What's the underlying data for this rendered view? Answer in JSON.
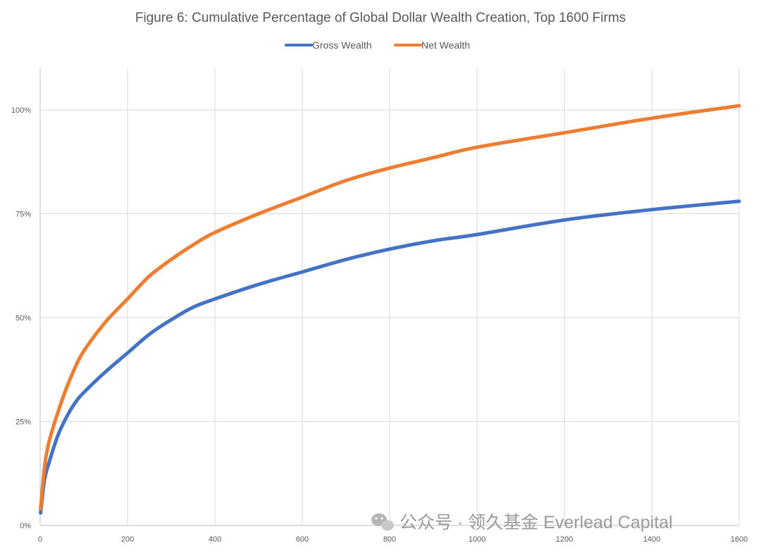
{
  "chart_data": {
    "type": "line",
    "title": "Figure 6: Cumulative Percentage of Global Dollar Wealth Creation, Top 1600 Firms",
    "xlabel": "",
    "ylabel": "",
    "xlim": [
      0,
      1600
    ],
    "ylim": [
      0,
      1.1
    ],
    "x_ticks": [
      0,
      200,
      400,
      600,
      800,
      1000,
      1200,
      1400,
      1600
    ],
    "x_tick_labels": [
      "0",
      "200",
      "400",
      "600",
      "800",
      "1000",
      "1200",
      "1400",
      "1600"
    ],
    "y_ticks": [
      0,
      0.25,
      0.5,
      0.75,
      1.0
    ],
    "y_tick_labels": [
      "0%",
      "25%",
      "50%",
      "75%",
      "100%"
    ],
    "grid": "vertical and horizontal",
    "legend_position": "top",
    "x": [
      1,
      10,
      20,
      40,
      60,
      80,
      100,
      150,
      200,
      250,
      300,
      350,
      400,
      500,
      600,
      700,
      800,
      900,
      1000,
      1200,
      1400,
      1600
    ],
    "series": [
      {
        "name": "Gross Wealth",
        "color": "#4472C4",
        "values": [
          0.03,
          0.11,
          0.15,
          0.215,
          0.26,
          0.295,
          0.32,
          0.37,
          0.415,
          0.46,
          0.495,
          0.525,
          0.545,
          0.58,
          0.61,
          0.64,
          0.665,
          0.685,
          0.7,
          0.735,
          0.76,
          0.78
        ]
      },
      {
        "name": "Net Wealth",
        "color": "#ED7D31",
        "values": [
          0.04,
          0.14,
          0.2,
          0.27,
          0.33,
          0.38,
          0.42,
          0.49,
          0.545,
          0.6,
          0.64,
          0.675,
          0.705,
          0.75,
          0.79,
          0.83,
          0.86,
          0.885,
          0.91,
          0.945,
          0.98,
          1.01
        ]
      }
    ]
  },
  "watermark": {
    "text": "公众号 · 领久基金 Everlead Capital",
    "icon": "wechat-icon"
  }
}
